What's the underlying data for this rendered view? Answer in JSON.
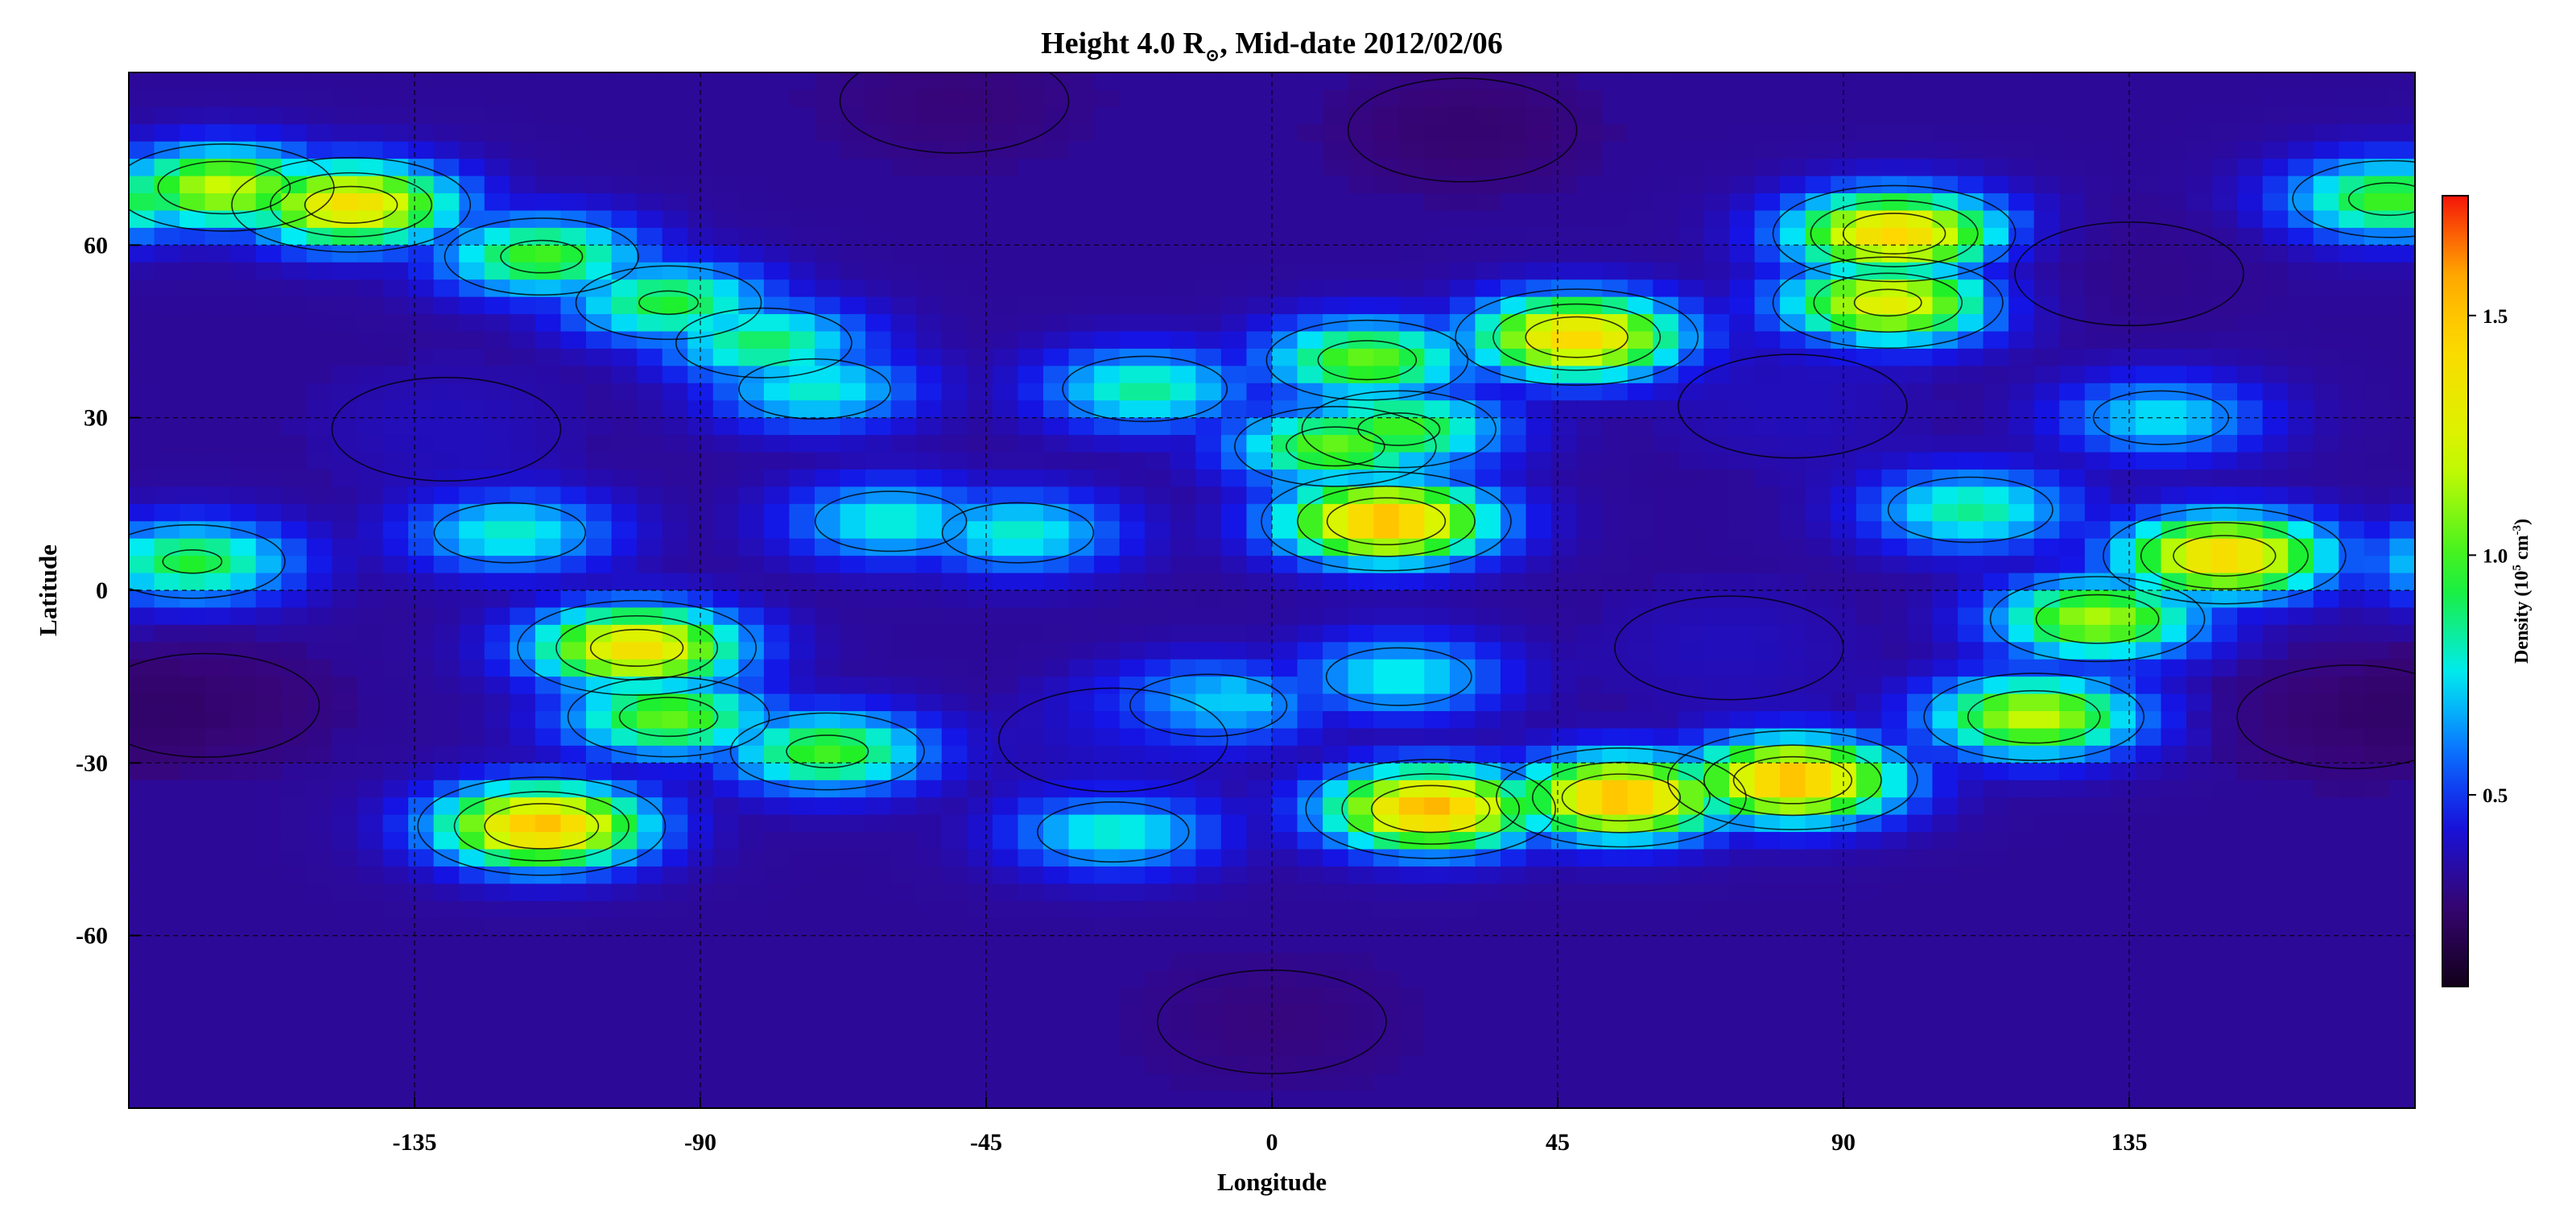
{
  "chart_data": {
    "type": "heatmap",
    "title": "Height 4.0 R",
    "title_subscript": "⊙",
    "title_suffix": ", Mid-date 2012/02/06",
    "xlabel": "Longitude",
    "ylabel": "Latitude",
    "xlim": [
      -180,
      180
    ],
    "ylim": [
      -90,
      90
    ],
    "x_ticks": [
      -135,
      -90,
      -45,
      0,
      45,
      90,
      135
    ],
    "y_ticks": [
      60,
      30,
      0,
      -30,
      -60
    ],
    "grid": true,
    "contours": true,
    "colorbar": {
      "label": "Density (10",
      "label_exp": "5",
      "label_unit": " cm",
      "label_unit_exp": "-3",
      "label_close": ")",
      "range": [
        0.1,
        1.75
      ],
      "ticks": [
        0.5,
        1.0,
        1.5
      ],
      "tick_labels": [
        "0.5",
        "1.0",
        "1.5"
      ]
    },
    "background_density": 0.33,
    "features": [
      {
        "lon": 18,
        "lat": 12,
        "value": 1.55
      },
      {
        "lon": 48,
        "lat": 44,
        "value": 1.45
      },
      {
        "lon": 15,
        "lat": 40,
        "value": 1.05
      },
      {
        "lon": 10,
        "lat": 25,
        "value": 1.05
      },
      {
        "lon": 20,
        "lat": 28,
        "value": 1.0
      },
      {
        "lon": -115,
        "lat": -41,
        "value": 1.52
      },
      {
        "lon": -100,
        "lat": -10,
        "value": 1.4
      },
      {
        "lon": -95,
        "lat": -22,
        "value": 1.05
      },
      {
        "lon": -70,
        "lat": -28,
        "value": 1.0
      },
      {
        "lon": 25,
        "lat": -38,
        "value": 1.55
      },
      {
        "lon": 55,
        "lat": -36,
        "value": 1.55
      },
      {
        "lon": 82,
        "lat": -33,
        "value": 1.55
      },
      {
        "lon": 150,
        "lat": 6,
        "value": 1.45
      },
      {
        "lon": 130,
        "lat": -5,
        "value": 1.15
      },
      {
        "lon": 120,
        "lat": -22,
        "value": 1.2
      },
      {
        "lon": -145,
        "lat": 67,
        "value": 1.4
      },
      {
        "lon": -165,
        "lat": 70,
        "value": 1.2
      },
      {
        "lon": -115,
        "lat": 58,
        "value": 1.0
      },
      {
        "lon": -95,
        "lat": 50,
        "value": 0.95
      },
      {
        "lon": -80,
        "lat": 43,
        "value": 0.9
      },
      {
        "lon": 98,
        "lat": 62,
        "value": 1.45
      },
      {
        "lon": 97,
        "lat": 50,
        "value": 1.3
      },
      {
        "lon": -40,
        "lat": 10,
        "value": 0.8
      },
      {
        "lon": -20,
        "lat": 35,
        "value": 0.85
      },
      {
        "lon": -60,
        "lat": 12,
        "value": 0.8
      },
      {
        "lon": -120,
        "lat": 10,
        "value": 0.8
      },
      {
        "lon": -170,
        "lat": 5,
        "value": 0.95
      },
      {
        "lon": 110,
        "lat": 14,
        "value": 0.85
      },
      {
        "lon": 140,
        "lat": 30,
        "value": 0.75
      },
      {
        "lon": 20,
        "lat": -15,
        "value": 0.78
      },
      {
        "lon": -10,
        "lat": -20,
        "value": 0.82
      },
      {
        "lon": 176,
        "lat": 68,
        "value": 1.0
      },
      {
        "lon": -72,
        "lat": 35,
        "value": 0.8
      },
      {
        "lon": -25,
        "lat": -42,
        "value": 0.8
      }
    ],
    "depressions": [
      {
        "lon": -130,
        "lat": 28,
        "value": 0.42
      },
      {
        "lon": 82,
        "lat": 32,
        "value": 0.42
      },
      {
        "lon": 72,
        "lat": -10,
        "value": 0.42
      },
      {
        "lon": -25,
        "lat": -26,
        "value": 0.42
      },
      {
        "lon": 135,
        "lat": 55,
        "value": 0.3
      },
      {
        "lon": -168,
        "lat": -20,
        "value": 0.22
      },
      {
        "lon": 170,
        "lat": -22,
        "value": 0.22
      },
      {
        "lon": 30,
        "lat": 80,
        "value": 0.22
      },
      {
        "lon": -50,
        "lat": 85,
        "value": 0.25
      },
      {
        "lon": 0,
        "lat": -75,
        "value": 0.26
      }
    ]
  }
}
